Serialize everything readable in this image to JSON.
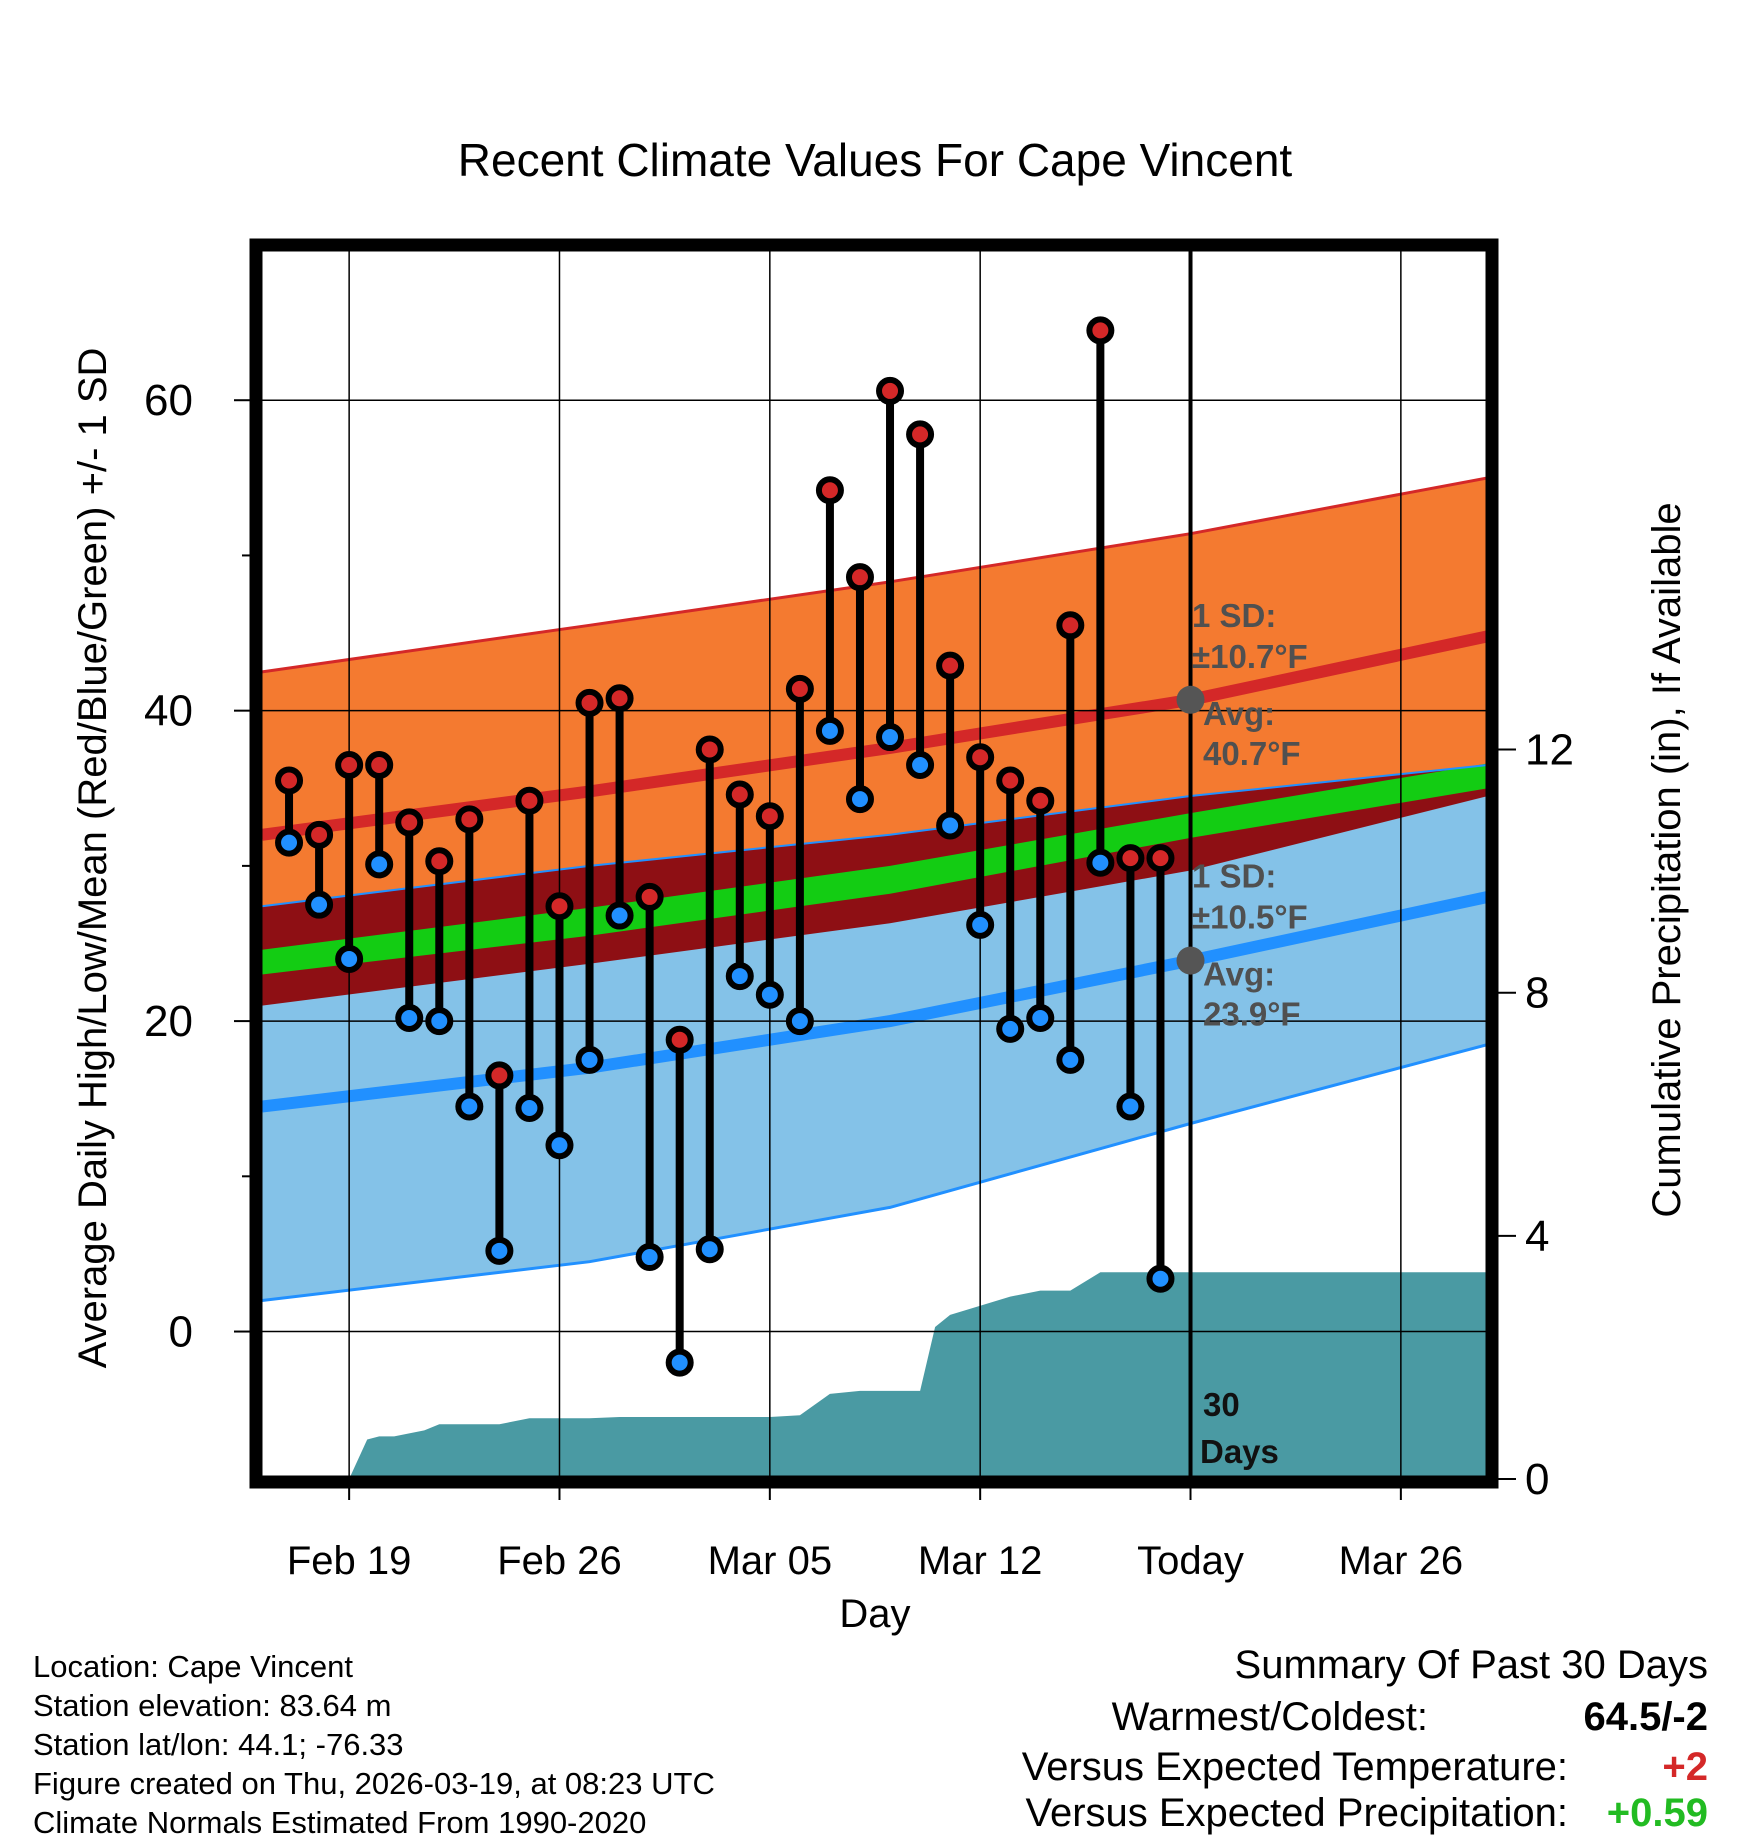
{
  "chart_data": {
    "type": "line",
    "title": "Recent Climate Values For Cape Vincent",
    "xlabel": "Day",
    "ylabel": "Average Daily High/Low/Mean (Red/Blue/Green) +/- 1 SD",
    "y2label": "Cumulative Precipitation (in), If Available",
    "xlim": [
      -0.9,
      39.9
    ],
    "ylim": [
      -9.5,
      70
    ],
    "y2lim": [
      0,
      20.3
    ],
    "x_ticks": [
      {
        "x": 2,
        "label": "Feb 19"
      },
      {
        "x": 9,
        "label": "Feb 26"
      },
      {
        "x": 16,
        "label": "Mar 05"
      },
      {
        "x": 23,
        "label": "Mar 12"
      },
      {
        "x": 30,
        "label": "Today"
      },
      {
        "x": 37,
        "label": "Mar 26"
      }
    ],
    "y_ticks": [
      0,
      20,
      40,
      60
    ],
    "y2_ticks": [
      0,
      4,
      8,
      12
    ],
    "normals": {
      "x": [
        -0.9,
        10,
        20,
        30,
        39.9
      ],
      "high_mean": [
        32.0,
        34.8,
        37.6,
        40.7,
        44.8
      ],
      "high_upper": [
        42.5,
        45.5,
        48.3,
        51.4,
        55.0
      ],
      "high_lower": [
        21.0,
        23.7,
        26.3,
        29.7,
        34.5
      ],
      "low_mean": [
        14.5,
        17.0,
        20.0,
        23.9,
        28.0
      ],
      "low_upper": [
        27.4,
        30.0,
        32.0,
        34.5,
        36.5
      ],
      "low_lower": [
        2.0,
        4.5,
        8.0,
        13.4,
        18.5
      ],
      "mean_lower": [
        23.0,
        25.5,
        28.2,
        31.8,
        35.0
      ],
      "mean_upper": [
        24.6,
        27.3,
        30.0,
        33.4,
        36.6
      ]
    },
    "series": [
      {
        "name": "Daily High",
        "color": "#d42828",
        "x": [
          0,
          1,
          2,
          3,
          4,
          5,
          6,
          7,
          8,
          9,
          10,
          11,
          12,
          13,
          14,
          15,
          16,
          17,
          18,
          19,
          20,
          21,
          22,
          23,
          24,
          25,
          26,
          27,
          28,
          29
        ],
        "values": [
          35.5,
          32,
          36.5,
          36.5,
          32.8,
          30.3,
          33,
          16.5,
          34.2,
          27.4,
          40.5,
          40.8,
          28,
          18.8,
          37.5,
          34.6,
          33.2,
          41.4,
          54.2,
          48.6,
          60.6,
          57.8,
          42.9,
          37,
          35.5,
          34.2,
          45.5,
          64.5,
          30.5,
          30.5
        ]
      },
      {
        "name": "Daily Low",
        "color": "#2190ff",
        "x": [
          0,
          1,
          2,
          3,
          4,
          5,
          6,
          7,
          8,
          9,
          10,
          11,
          12,
          13,
          14,
          15,
          16,
          17,
          18,
          19,
          20,
          21,
          22,
          23,
          24,
          25,
          26,
          27,
          28,
          29
        ],
        "values": [
          31.5,
          27.5,
          24,
          30.1,
          20.2,
          20,
          14.5,
          5.2,
          14.4,
          12,
          17.5,
          26.8,
          4.8,
          -2,
          5.3,
          22.9,
          21.7,
          20,
          38.7,
          34.3,
          38.3,
          36.5,
          32.6,
          26.2,
          19.5,
          20.2,
          17.5,
          30.2,
          14.5,
          3.4
        ]
      },
      {
        "name": "Cumulative Precipitation (in)",
        "color": "#4a9aa3",
        "x": [
          2,
          2.6,
          3,
          3.5,
          4,
          4.5,
          5,
          6,
          7,
          8,
          9,
          10,
          11,
          12,
          13,
          14,
          15,
          16,
          17,
          18,
          19,
          20,
          21,
          21.5,
          22,
          23,
          24,
          25,
          26,
          27,
          28,
          29,
          30,
          39.9
        ],
        "values": [
          0,
          0.65,
          0.7,
          0.7,
          0.75,
          0.8,
          0.9,
          0.9,
          0.9,
          1.0,
          1.0,
          1.0,
          1.02,
          1.02,
          1.02,
          1.02,
          1.02,
          1.02,
          1.05,
          1.4,
          1.45,
          1.45,
          1.45,
          2.5,
          2.7,
          2.85,
          3.0,
          3.1,
          3.1,
          3.4,
          3.4,
          3.4,
          3.4,
          3.4
        ]
      }
    ],
    "today_x": 30,
    "annotations": {
      "high_sd_label": "1 SD:",
      "high_sd_value": "±10.7°F",
      "high_avg_label": "Avg:",
      "high_avg_value": "40.7°F",
      "low_sd_label": "1 SD:",
      "low_sd_value": "±10.5°F",
      "low_avg_label": "Avg:",
      "low_avg_value": "23.9°F",
      "days_line1": "30",
      "days_line2": "Days"
    },
    "colors": {
      "high_band": "#f47a30",
      "high_line": "#d42828",
      "low_band": "#84c2e8",
      "low_line": "#2190ff",
      "mean_band": "#13cc13",
      "overlap_band": "#8e0f14",
      "precip": "#4a9aa3"
    }
  },
  "footer": {
    "location": "Location: Cape Vincent",
    "elevation": "Station elevation: 83.64 m",
    "latlon": "Station lat/lon: 44.1; -76.33",
    "created": "Figure created on Thu, 2026-03-19, at 08:23 UTC",
    "normals": "Climate Normals Estimated From 1990-2020"
  },
  "summary": {
    "title": "Summary Of Past 30 Days",
    "warm_cold_label": "Warmest/Coldest:",
    "warm_cold_value": "64.5/-2",
    "temp_label": "Versus Expected Temperature:",
    "temp_value": "+2",
    "temp_color": "#d42828",
    "precip_label": "Versus Expected Precipitation:",
    "precip_value": "+0.59",
    "precip_color": "#22bb22"
  }
}
